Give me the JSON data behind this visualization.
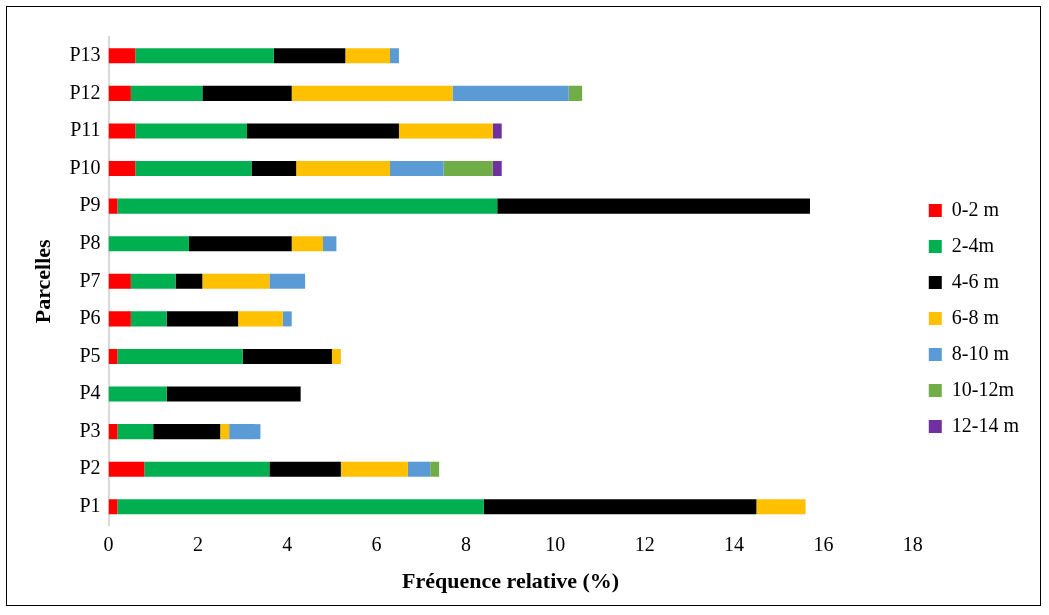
{
  "chart_data": {
    "type": "bar",
    "orientation": "horizontal",
    "stacked": true,
    "xlabel": "Fréquence relative (%)",
    "ylabel": "Parcelles",
    "categories": [
      "P13",
      "P12",
      "P11",
      "P10",
      "P9",
      "P8",
      "P7",
      "P6",
      "P5",
      "P4",
      "P3",
      "P2",
      "P1"
    ],
    "series": [
      {
        "name": "0-2 m",
        "color": "#ff0000",
        "values": [
          0.6,
          0.5,
          0.6,
          0.6,
          0.2,
          0,
          0.5,
          0.5,
          0.2,
          0,
          0.2,
          0.8,
          0.2
        ]
      },
      {
        "name": "2-4m",
        "color": "#00b050",
        "values": [
          3.1,
          1.6,
          2.5,
          2.6,
          8.5,
          1.8,
          1.0,
          0.8,
          2.8,
          1.3,
          0.8,
          2.8,
          8.2
        ]
      },
      {
        "name": "4-6 m",
        "color": "#000000",
        "values": [
          1.6,
          2.0,
          3.4,
          1.0,
          7.0,
          2.3,
          0.6,
          1.6,
          2.0,
          3.0,
          1.5,
          1.6,
          6.1
        ]
      },
      {
        "name": "6-8 m",
        "color": "#ffc000",
        "values": [
          1.0,
          3.6,
          2.1,
          2.1,
          0,
          0.7,
          1.5,
          1.0,
          0.2,
          0,
          0.2,
          1.5,
          1.1
        ]
      },
      {
        "name": "8-10 m",
        "color": "#5b9bd5",
        "values": [
          0.2,
          2.6,
          0,
          1.2,
          0,
          0.3,
          0.8,
          0.2,
          0,
          0,
          0.7,
          0.5,
          0
        ]
      },
      {
        "name": "10-12m",
        "color": "#70ad47",
        "values": [
          0,
          0.3,
          0,
          1.1,
          0,
          0,
          0,
          0,
          0,
          0,
          0,
          0.2,
          0
        ]
      },
      {
        "name": "12-14 m",
        "color": "#7030a0",
        "values": [
          0,
          0,
          0.2,
          0.2,
          0,
          0,
          0,
          0,
          0,
          0,
          0,
          0,
          0
        ]
      }
    ],
    "xlim": [
      0,
      18
    ],
    "xticks": [
      0,
      2,
      4,
      6,
      8,
      10,
      12,
      14,
      16,
      18
    ],
    "grid": false,
    "legend": "right"
  }
}
